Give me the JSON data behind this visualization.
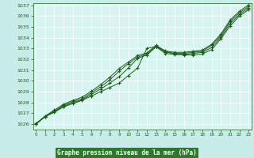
{
  "title": "Graphe pression niveau de la mer (hPa)",
  "bg_color": "#c8ece8",
  "plot_bg_color": "#d8f4f0",
  "grid_color": "#ffffff",
  "line_color": "#1a5c1a",
  "tick_color": "#1a5c1a",
  "label_bottom_bg": "#2a7a2a",
  "ylim_min": 1025.5,
  "ylim_max": 1037.2,
  "xlim_min": -0.3,
  "xlim_max": 23.3,
  "yticks": [
    1026,
    1027,
    1028,
    1029,
    1030,
    1031,
    1032,
    1033,
    1034,
    1035,
    1036,
    1037
  ],
  "xticks": [
    0,
    1,
    2,
    3,
    4,
    5,
    6,
    7,
    8,
    9,
    10,
    11,
    12,
    13,
    14,
    15,
    16,
    17,
    18,
    19,
    20,
    21,
    22,
    23
  ],
  "line1_x": [
    0,
    1,
    2,
    3,
    4,
    5,
    6,
    7,
    8,
    9,
    10,
    11,
    12,
    13,
    14,
    15,
    16,
    17,
    18,
    19,
    20,
    21,
    22,
    23
  ],
  "line1_y": [
    1026.0,
    1026.7,
    1027.1,
    1027.6,
    1027.9,
    1028.2,
    1028.6,
    1029.0,
    1029.4,
    1029.8,
    1030.5,
    1031.2,
    1033.0,
    1033.2,
    1032.8,
    1032.5,
    1032.4,
    1032.4,
    1032.5,
    1032.9,
    1033.9,
    1035.1,
    1036.0,
    1036.6
  ],
  "line2_x": [
    0,
    1,
    2,
    3,
    4,
    5,
    6,
    7,
    8,
    9,
    10,
    11,
    12,
    13,
    14,
    15,
    16,
    17,
    18,
    19,
    20,
    21,
    22,
    23
  ],
  "line2_y": [
    1026.0,
    1026.7,
    1027.15,
    1027.65,
    1028.0,
    1028.25,
    1028.75,
    1029.25,
    1029.8,
    1030.4,
    1031.2,
    1032.1,
    1032.4,
    1033.15,
    1032.55,
    1032.45,
    1032.45,
    1032.55,
    1032.65,
    1033.1,
    1034.05,
    1035.3,
    1036.15,
    1036.75
  ],
  "line3_x": [
    0,
    1,
    2,
    3,
    4,
    5,
    6,
    7,
    8,
    9,
    10,
    11,
    12,
    13,
    14,
    15,
    16,
    17,
    18,
    19,
    20,
    21,
    22,
    23
  ],
  "line3_y": [
    1026.0,
    1026.7,
    1027.2,
    1027.75,
    1028.1,
    1028.35,
    1028.9,
    1029.45,
    1030.1,
    1030.9,
    1031.6,
    1032.2,
    1032.5,
    1033.2,
    1032.65,
    1032.55,
    1032.55,
    1032.65,
    1032.75,
    1033.3,
    1034.2,
    1035.5,
    1036.3,
    1036.9
  ],
  "line4_x": [
    0,
    1,
    2,
    3,
    4,
    5,
    6,
    7,
    8,
    9,
    10,
    11,
    12,
    13,
    14,
    15,
    16,
    17,
    18,
    19,
    20,
    21,
    22,
    23
  ],
  "line4_y": [
    1026.05,
    1026.75,
    1027.3,
    1027.85,
    1028.2,
    1028.5,
    1029.05,
    1029.65,
    1030.35,
    1031.15,
    1031.75,
    1032.35,
    1032.6,
    1033.3,
    1032.75,
    1032.65,
    1032.65,
    1032.75,
    1032.85,
    1033.4,
    1034.35,
    1035.65,
    1036.45,
    1037.05
  ]
}
